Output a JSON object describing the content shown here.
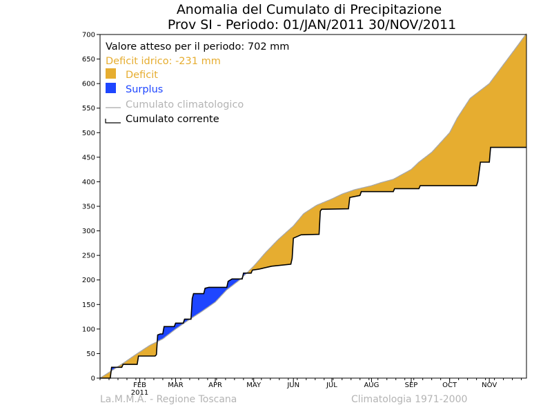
{
  "header": {
    "title_line1": "Anomalia del Cumulato di Precipitazione",
    "title_line2": "Prov SI - Periodo: 01/JAN/2011 30/NOV/2011"
  },
  "legend": {
    "expected": "Valore atteso per il periodo: 702 mm",
    "deficit_text": "Deficit idrico: -231 mm",
    "deficit_label": "Deficit",
    "surplus_label": "Surplus",
    "climatological_label": "Cumulato climatologico",
    "current_label": "Cumulato corrente"
  },
  "footer": {
    "left": "La.M.M.A. - Regione Toscana",
    "right": "Climatologia 1971-2000"
  },
  "colors": {
    "deficit": "#e6ad30",
    "surplus": "#1e46ff",
    "climatological": "#a8a8a8",
    "current": "#000000",
    "deficit_text": "#e6ad30",
    "surplus_text": "#1e46ff",
    "climatological_text": "#b4b4b4"
  },
  "chart_data": {
    "type": "area",
    "title": "Anomalia del Cumulato di Precipitazione",
    "subtitle": "Prov SI - Periodo: 01/JAN/2011 30/NOV/2011",
    "xlabel": "",
    "ylabel": "",
    "x_unit": "day of year 2011",
    "xlim": [
      1,
      334
    ],
    "ylim": [
      0,
      700
    ],
    "y_ticks": [
      0,
      50,
      100,
      150,
      200,
      250,
      300,
      350,
      400,
      450,
      500,
      550,
      600,
      650,
      700
    ],
    "x_ticks": [
      {
        "label": "FEB",
        "sublabel": "2011",
        "x": 32
      },
      {
        "label": "MAR",
        "x": 60
      },
      {
        "label": "APR",
        "x": 91
      },
      {
        "label": "MAY",
        "x": 121
      },
      {
        "label": "JUN",
        "x": 152
      },
      {
        "label": "JUL",
        "x": 182
      },
      {
        "label": "AUG",
        "x": 213
      },
      {
        "label": "SEP",
        "x": 244
      },
      {
        "label": "OCT",
        "x": 274
      },
      {
        "label": "NOV",
        "x": 305
      }
    ],
    "grid": false,
    "legend_position": "top-left",
    "series": [
      {
        "name": "Cumulato climatologico",
        "x": [
          1,
          10,
          20,
          30,
          40,
          50,
          60,
          70,
          80,
          91,
          100,
          110,
          121,
          130,
          140,
          152,
          160,
          170,
          182,
          190,
          200,
          213,
          220,
          230,
          244,
          250,
          260,
          274,
          280,
          290,
          305,
          315,
          325,
          334
        ],
        "y": [
          0,
          15,
          32,
          50,
          67,
          80,
          100,
          118,
          135,
          155,
          180,
          200,
          228,
          255,
          282,
          310,
          335,
          352,
          365,
          375,
          384,
          392,
          398,
          405,
          425,
          440,
          460,
          500,
          530,
          570,
          600,
          635,
          670,
          702
        ]
      },
      {
        "name": "Cumulato corrente",
        "steps": [
          [
            1,
            0
          ],
          [
            9,
            0
          ],
          [
            10,
            22
          ],
          [
            18,
            22
          ],
          [
            19,
            28
          ],
          [
            30,
            28
          ],
          [
            31,
            45
          ],
          [
            44,
            45
          ],
          [
            45,
            48
          ],
          [
            46,
            88
          ],
          [
            48,
            90
          ],
          [
            50,
            90
          ],
          [
            51,
            105
          ],
          [
            59,
            105
          ],
          [
            60,
            112
          ],
          [
            66,
            112
          ],
          [
            67,
            120
          ],
          [
            72,
            120
          ],
          [
            73,
            162
          ],
          [
            74,
            172
          ],
          [
            82,
            172
          ],
          [
            83,
            183
          ],
          [
            86,
            185
          ],
          [
            100,
            185
          ],
          [
            101,
            197
          ],
          [
            104,
            202
          ],
          [
            112,
            202
          ],
          [
            113,
            214
          ],
          [
            119,
            214
          ],
          [
            120,
            220
          ],
          [
            125,
            222
          ],
          [
            135,
            228
          ],
          [
            150,
            232
          ],
          [
            151,
            244
          ],
          [
            152,
            285
          ],
          [
            158,
            292
          ],
          [
            172,
            293
          ],
          [
            173,
            340
          ],
          [
            174,
            344
          ],
          [
            195,
            345
          ],
          [
            196,
            368
          ],
          [
            204,
            372
          ],
          [
            205,
            380
          ],
          [
            230,
            380
          ],
          [
            231,
            386
          ],
          [
            250,
            386
          ],
          [
            251,
            392
          ],
          [
            295,
            392
          ],
          [
            296,
            400
          ],
          [
            298,
            440
          ],
          [
            305,
            440
          ],
          [
            306,
            470
          ],
          [
            334,
            470
          ]
        ]
      }
    ],
    "annotations": [
      "Valore atteso per il periodo: 702 mm",
      "Deficit idrico: -231 mm"
    ]
  }
}
